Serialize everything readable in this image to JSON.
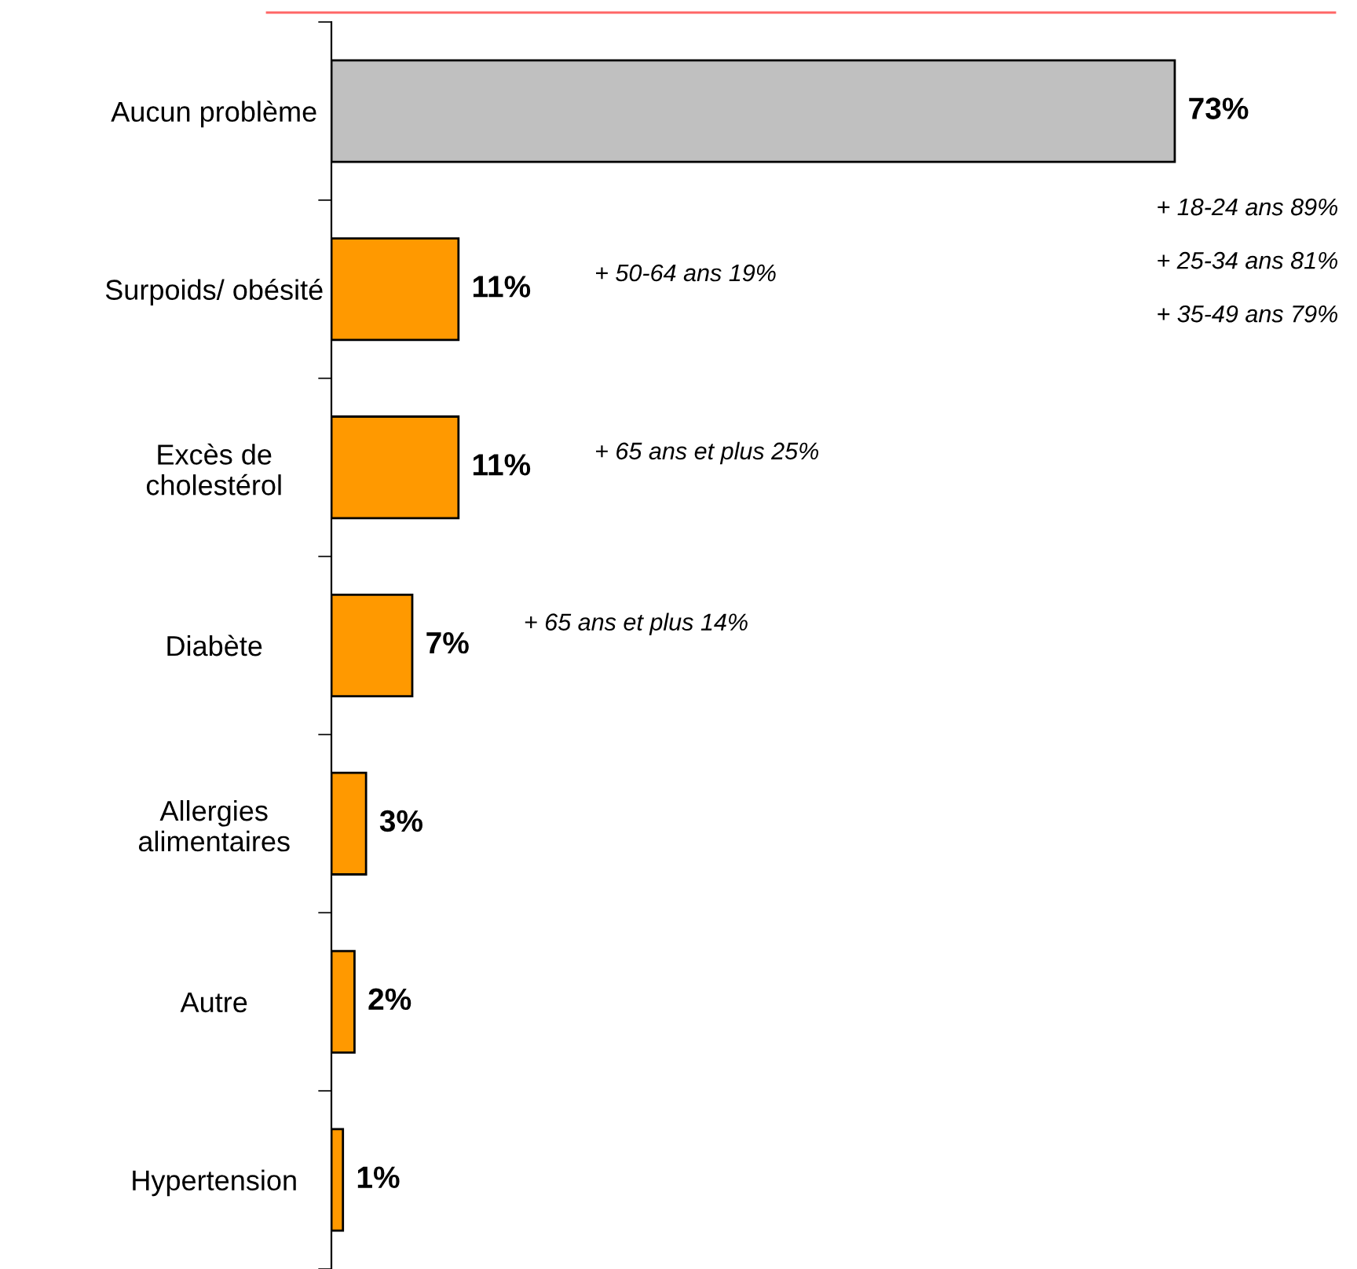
{
  "chart_data": {
    "type": "bar",
    "orientation": "horizontal",
    "categories": [
      "Aucun problème",
      "Surpoids/ obésité",
      "Excès de\ncholestérol",
      "Diabète",
      "Allergies\nalimentaires",
      "Autre",
      "Hypertension"
    ],
    "values": [
      73,
      11,
      11,
      7,
      3,
      2,
      1
    ],
    "colors": [
      "#c0c0c0",
      "#ff9900",
      "#ff9900",
      "#ff9900",
      "#ff9900",
      "#ff9900",
      "#ff9900"
    ],
    "value_labels": [
      "73%",
      "11%",
      "11%",
      "7%",
      "3%",
      "2%",
      "1%"
    ],
    "grid": false,
    "legend": false,
    "annotations": [
      "+ 18-24 ans 89%",
      "+ 25-34 ans 81%",
      "+ 35-49 ans 79%",
      "+ 50-64 ans 19%",
      "+ 65 ans et plus 25%",
      "+ 65 ans et plus 14%"
    ]
  }
}
